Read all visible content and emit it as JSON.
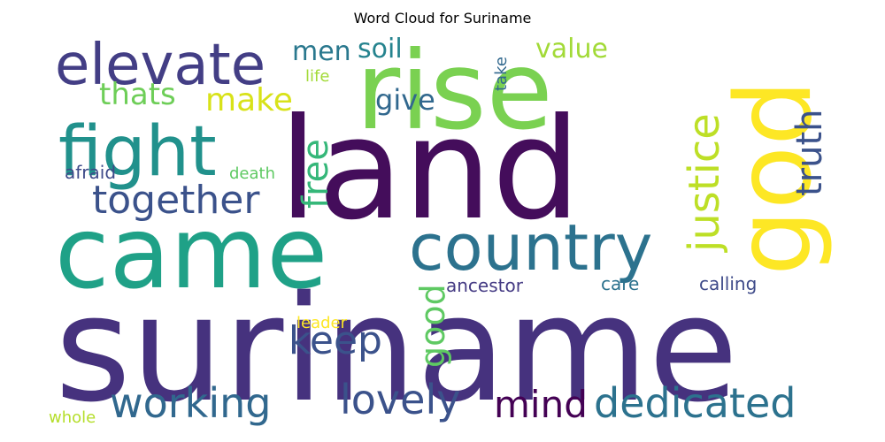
{
  "chart_data": {
    "type": "wordcloud",
    "title": "Word Cloud for Suriname",
    "words": [
      {
        "text": "suriname",
        "color": "#46327e",
        "rotated": false
      },
      {
        "text": "land",
        "color": "#440d5b",
        "rotated": false
      },
      {
        "text": "came",
        "color": "#1fa187",
        "rotated": false
      },
      {
        "text": "rise",
        "color": "#7ad151",
        "rotated": false
      },
      {
        "text": "god",
        "color": "#fde725",
        "rotated": true
      },
      {
        "text": "country",
        "color": "#2c728e",
        "rotated": false
      },
      {
        "text": "fight",
        "color": "#21918c",
        "rotated": false
      },
      {
        "text": "elevate",
        "color": "#433e85",
        "rotated": false
      },
      {
        "text": "together",
        "color": "#3b528b",
        "rotated": false
      },
      {
        "text": "justice",
        "color": "#bddf26",
        "rotated": true
      },
      {
        "text": "truth",
        "color": "#3b528b",
        "rotated": true
      },
      {
        "text": "working",
        "color": "#31688e",
        "rotated": false
      },
      {
        "text": "dedicated",
        "color": "#2c728e",
        "rotated": false
      },
      {
        "text": "lovely",
        "color": "#3b528b",
        "rotated": false
      },
      {
        "text": "mind",
        "color": "#440154",
        "rotated": false
      },
      {
        "text": "keep",
        "color": "#3b528b",
        "rotated": false
      },
      {
        "text": "good",
        "color": "#5ec962",
        "rotated": true
      },
      {
        "text": "free",
        "color": "#35b779",
        "rotated": true
      },
      {
        "text": "thats",
        "color": "#6ece58",
        "rotated": false
      },
      {
        "text": "make",
        "color": "#d8e219",
        "rotated": false
      },
      {
        "text": "men",
        "color": "#2a788e",
        "rotated": false
      },
      {
        "text": "soil",
        "color": "#25838e",
        "rotated": false
      },
      {
        "text": "value",
        "color": "#a2da37",
        "rotated": false
      },
      {
        "text": "give",
        "color": "#31688e",
        "rotated": false
      },
      {
        "text": "ancestor",
        "color": "#443a83",
        "rotated": false
      },
      {
        "text": "care",
        "color": "#2c728e",
        "rotated": false
      },
      {
        "text": "calling",
        "color": "#3e4a89",
        "rotated": false
      },
      {
        "text": "afraid",
        "color": "#3e4a89",
        "rotated": false
      },
      {
        "text": "death",
        "color": "#5ec962",
        "rotated": false
      },
      {
        "text": "life",
        "color": "#a2da37",
        "rotated": false
      },
      {
        "text": "take",
        "color": "#31688e",
        "rotated": true
      },
      {
        "text": "leader",
        "color": "#fde725",
        "rotated": false
      },
      {
        "text": "whole",
        "color": "#b5de2b",
        "rotated": false
      }
    ]
  }
}
